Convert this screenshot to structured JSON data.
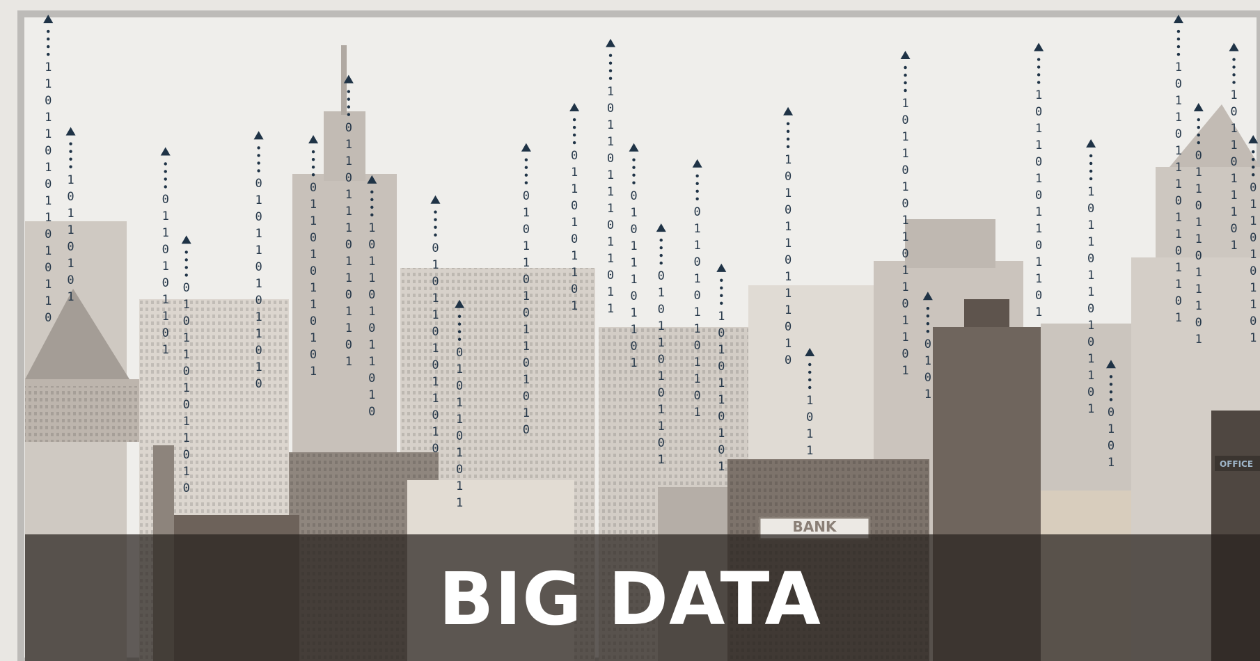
{
  "title": "BIG DATA",
  "signs": {
    "bank": "BANK",
    "office": "OFFICE"
  },
  "streams": [
    "1101101011010110",
    "10110101",
    "0110101101",
    "0101101011010",
    "0101101011010",
    "011010110101",
    "011011101101101",
    "101101011010",
    "0101101011010",
    "0101101011",
    "010110101101010",
    "0110101101",
    "10110111011011",
    "01011101101",
    "010110101101",
    "0110101101101",
    "1010110101",
    "1010110111010",
    "1011",
    "10110101101101101",
    "0101",
    "10110101101101",
    "10110110101101",
    "0101",
    "1011011101101101",
    "011011011101",
    "1011011101",
    "0110101101"
  ]
}
